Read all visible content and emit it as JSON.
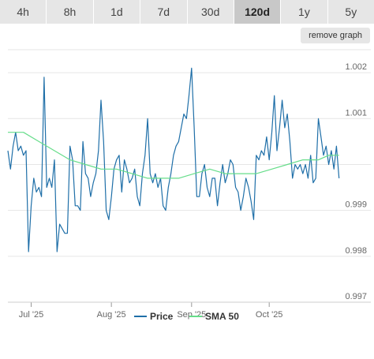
{
  "tabs": [
    {
      "label": "4h"
    },
    {
      "label": "8h"
    },
    {
      "label": "1d"
    },
    {
      "label": "7d"
    },
    {
      "label": "30d"
    },
    {
      "label": "120d",
      "active": true
    },
    {
      "label": "1y"
    },
    {
      "label": "5y"
    }
  ],
  "remove_graph_label": "remove graph",
  "colors": {
    "price": "#1f6fa8",
    "sma": "#66dd8a",
    "grid": "#e6e6e6",
    "active_tab": "#c8c8c8"
  },
  "chart_data": {
    "type": "line",
    "title": "",
    "xlabel": "",
    "ylabel": "",
    "ylim": [
      0.997,
      1.0025
    ],
    "xlim": [
      "2025-06-22",
      "2025-10-29"
    ],
    "yticks": [
      {
        "value": 0.997,
        "label": "0.997"
      },
      {
        "value": 0.998,
        "label": "0.998"
      },
      {
        "value": 0.999,
        "label": "0.999"
      },
      {
        "value": 1.001,
        "label": "1.001"
      },
      {
        "value": 1.002,
        "label": "1.002"
      }
    ],
    "xticks": [
      {
        "date": "2025-07-01",
        "label": "Jul '25"
      },
      {
        "date": "2025-08-01",
        "label": "Aug '25"
      },
      {
        "date": "2025-09-01",
        "label": "Sep '25"
      },
      {
        "date": "2025-10-01",
        "label": "Oct '25"
      }
    ],
    "grid": true,
    "legend": "bottom-center",
    "series": [
      {
        "name": "Price",
        "x": [
          "2025-06-22",
          "2025-06-23",
          "2025-06-24",
          "2025-06-25",
          "2025-06-26",
          "2025-06-27",
          "2025-06-28",
          "2025-06-29",
          "2025-06-30",
          "2025-07-01",
          "2025-07-02",
          "2025-07-03",
          "2025-07-04",
          "2025-07-05",
          "2025-07-06",
          "2025-07-07",
          "2025-07-08",
          "2025-07-09",
          "2025-07-10",
          "2025-07-11",
          "2025-07-12",
          "2025-07-13",
          "2025-07-14",
          "2025-07-15",
          "2025-07-16",
          "2025-07-17",
          "2025-07-18",
          "2025-07-19",
          "2025-07-20",
          "2025-07-21",
          "2025-07-22",
          "2025-07-23",
          "2025-07-24",
          "2025-07-25",
          "2025-07-26",
          "2025-07-27",
          "2025-07-28",
          "2025-07-29",
          "2025-07-30",
          "2025-07-31",
          "2025-08-01",
          "2025-08-02",
          "2025-08-03",
          "2025-08-04",
          "2025-08-05",
          "2025-08-06",
          "2025-08-07",
          "2025-08-08",
          "2025-08-09",
          "2025-08-10",
          "2025-08-11",
          "2025-08-12",
          "2025-08-13",
          "2025-08-14",
          "2025-08-15",
          "2025-08-16",
          "2025-08-17",
          "2025-08-18",
          "2025-08-19",
          "2025-08-20",
          "2025-08-21",
          "2025-08-22",
          "2025-08-23",
          "2025-08-24",
          "2025-08-25",
          "2025-08-26",
          "2025-08-27",
          "2025-08-28",
          "2025-08-29",
          "2025-08-30",
          "2025-08-31",
          "2025-09-01",
          "2025-09-02",
          "2025-09-03",
          "2025-09-04",
          "2025-09-05",
          "2025-09-06",
          "2025-09-07",
          "2025-09-08",
          "2025-09-09",
          "2025-09-10",
          "2025-09-11",
          "2025-09-12",
          "2025-09-13",
          "2025-09-14",
          "2025-09-15",
          "2025-09-16",
          "2025-09-17",
          "2025-09-18",
          "2025-09-19",
          "2025-09-20",
          "2025-09-21",
          "2025-09-22",
          "2025-09-23",
          "2025-09-24",
          "2025-09-25",
          "2025-09-26",
          "2025-09-27",
          "2025-09-28",
          "2025-09-29",
          "2025-09-30",
          "2025-10-01",
          "2025-10-02",
          "2025-10-03",
          "2025-10-04",
          "2025-10-05",
          "2025-10-06",
          "2025-10-07",
          "2025-10-08",
          "2025-10-09",
          "2025-10-10",
          "2025-10-11",
          "2025-10-12",
          "2025-10-13",
          "2025-10-14",
          "2025-10-15",
          "2025-10-16",
          "2025-10-17",
          "2025-10-18",
          "2025-10-19",
          "2025-10-20",
          "2025-10-21",
          "2025-10-22",
          "2025-10-23",
          "2025-10-24",
          "2025-10-25",
          "2025-10-26",
          "2025-10-27",
          "2025-10-28"
        ],
        "y": [
          1.0003,
          0.9999,
          1.0004,
          1.0007,
          1.0003,
          1.0004,
          1.0002,
          1.0003,
          0.9981,
          0.9991,
          0.9997,
          0.9994,
          0.9995,
          0.9993,
          1.0019,
          0.9995,
          0.9997,
          0.9995,
          1.0001,
          0.9981,
          0.9987,
          0.9986,
          0.9985,
          0.9985,
          1.0004,
          1.0001,
          0.9991,
          0.9991,
          0.999,
          1.0005,
          0.9998,
          0.9997,
          0.9993,
          0.9996,
          0.9998,
          1.0003,
          1.0014,
          1.0005,
          0.999,
          0.9988,
          0.9993,
          0.9999,
          1.0001,
          1.0002,
          0.9994,
          1.0001,
          0.9999,
          0.9996,
          0.9997,
          0.9999,
          0.9993,
          0.9991,
          0.9998,
          1.0002,
          1.001,
          0.9998,
          0.9996,
          0.9998,
          0.9995,
          0.9997,
          0.9991,
          0.999,
          0.9995,
          0.9998,
          1.0002,
          1.0004,
          1.0005,
          1.0008,
          1.0011,
          1.001,
          1.0015,
          1.0021,
          1.0008,
          0.9993,
          0.9993,
          0.9998,
          1.0,
          0.9995,
          0.9993,
          0.9997,
          0.9997,
          0.9991,
          0.9996,
          1.0,
          0.9996,
          0.9998,
          1.0001,
          1.0,
          0.9995,
          0.9994,
          0.999,
          0.9993,
          0.9997,
          0.9995,
          0.9992,
          0.9988,
          1.0002,
          1.0001,
          1.0003,
          1.0002,
          1.0006,
          1.0001,
          1.0007,
          1.0015,
          1.0003,
          1.0008,
          1.0014,
          1.0008,
          1.0011,
          1.0005,
          0.9997,
          1.0,
          0.9999,
          1.0,
          0.9998,
          1.0,
          0.9997,
          1.0002,
          0.9996,
          0.9997,
          1.001,
          1.0006,
          1.0002,
          1.0004,
          1.0,
          1.0003,
          0.9999,
          1.0004,
          0.9997
        ]
      },
      {
        "name": "SMA 50",
        "x": [
          "2025-06-22",
          "2025-06-28",
          "2025-07-04",
          "2025-07-10",
          "2025-07-16",
          "2025-07-22",
          "2025-07-28",
          "2025-08-03",
          "2025-08-09",
          "2025-08-15",
          "2025-08-21",
          "2025-08-27",
          "2025-09-02",
          "2025-09-08",
          "2025-09-14",
          "2025-09-20",
          "2025-09-26",
          "2025-10-02",
          "2025-10-08",
          "2025-10-14",
          "2025-10-20",
          "2025-10-24",
          "2025-10-28"
        ],
        "y": [
          1.0007,
          1.0007,
          1.0005,
          1.0003,
          1.0001,
          1.0,
          0.9999,
          0.9999,
          0.9998,
          0.9997,
          0.9997,
          0.9997,
          0.9998,
          0.9999,
          0.9998,
          0.9998,
          0.9998,
          0.9999,
          1.0,
          1.0001,
          1.0001,
          1.0002,
          1.0002
        ]
      }
    ]
  }
}
